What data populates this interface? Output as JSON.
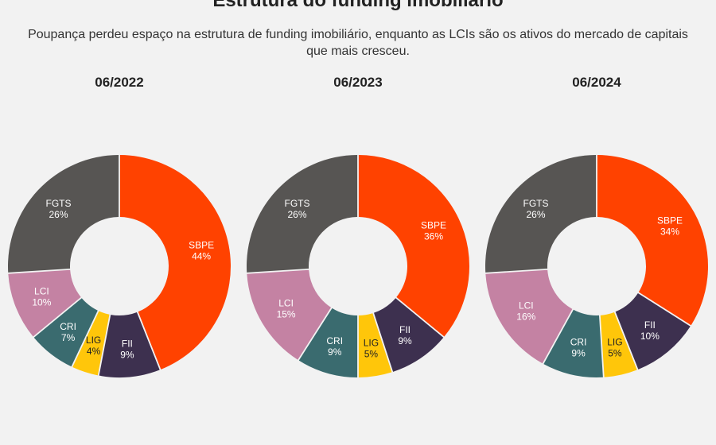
{
  "title": "Estrutura do funding imobiliário",
  "subtitle": "Poupança perdeu espaço na estrutura de funding imobiliário, enquanto as LCIs são os ativos do mercado de capitais que mais cresceu.",
  "colors": {
    "SBPE": "#ff4200",
    "FII": "#3d304f",
    "LIG": "#ffc60a",
    "CRI": "#3a6b6f",
    "LCI": "#c482a3",
    "FGTS": "#575553"
  },
  "label_colors": {
    "SBPE": "#ffffff",
    "FII": "#ffffff",
    "LIG": "#222222",
    "CRI": "#ffffff",
    "LCI": "#ffffff",
    "FGTS": "#ffffff"
  },
  "chart_data": [
    {
      "type": "pie",
      "title": "06/2022",
      "slices": [
        {
          "label": "SBPE",
          "value": 44,
          "display": "44%"
        },
        {
          "label": "FII",
          "value": 9,
          "display": "9%"
        },
        {
          "label": "LIG",
          "value": 4,
          "display": "4%"
        },
        {
          "label": "CRI",
          "value": 7,
          "display": "7%"
        },
        {
          "label": "LCI",
          "value": 10,
          "display": "10%"
        },
        {
          "label": "FGTS",
          "value": 26,
          "display": "26%"
        }
      ]
    },
    {
      "type": "pie",
      "title": "06/2023",
      "slices": [
        {
          "label": "SBPE",
          "value": 36,
          "display": "36%"
        },
        {
          "label": "FII",
          "value": 9,
          "display": "9%"
        },
        {
          "label": "LIG",
          "value": 5,
          "display": "5%"
        },
        {
          "label": "CRI",
          "value": 9,
          "display": "9%"
        },
        {
          "label": "LCI",
          "value": 15,
          "display": "15%"
        },
        {
          "label": "FGTS",
          "value": 26,
          "display": "26%"
        }
      ]
    },
    {
      "type": "pie",
      "title": "06/2024",
      "slices": [
        {
          "label": "SBPE",
          "value": 34,
          "display": "34%"
        },
        {
          "label": "FII",
          "value": 10,
          "display": "10%"
        },
        {
          "label": "LIG",
          "value": 5,
          "display": "5%"
        },
        {
          "label": "CRI",
          "value": 9,
          "display": "9%"
        },
        {
          "label": "LCI",
          "value": 16,
          "display": "16%"
        },
        {
          "label": "FGTS",
          "value": 26,
          "display": "26%"
        }
      ]
    }
  ]
}
